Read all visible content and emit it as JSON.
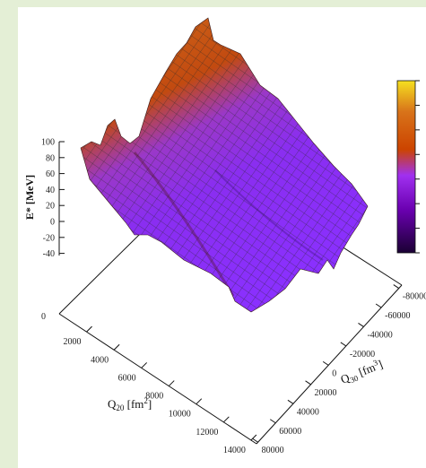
{
  "chart_data": {
    "type": "surface3d",
    "zlabel": "E* [MeV]",
    "xlabel": "Q20 [fm²]",
    "ylabel": "Q30 [fm³]",
    "z_ticks": [
      "100",
      "80",
      "60",
      "40",
      "20",
      "0",
      "-20",
      "-40"
    ],
    "z_floor_label": "0",
    "q20_ticks": [
      "2000",
      "4000",
      "6000",
      "8000",
      "10000",
      "12000",
      "14000"
    ],
    "q30_ticks": [
      "-80000",
      "-60000",
      "-40000",
      "-20000",
      "0",
      "20000",
      "40000",
      "60000",
      "80000"
    ],
    "zlim": [
      -40,
      100
    ],
    "q20_range": [
      0,
      14000
    ],
    "q30_range": [
      -80000,
      80000
    ],
    "colormap": [
      "#1a0033",
      "#6a00b0",
      "#a020f0",
      "#8a4fd0",
      "#cc4400",
      "#d8731a",
      "#e59b2a",
      "#f5e020"
    ],
    "mesh_color": "#2a2a2a"
  }
}
